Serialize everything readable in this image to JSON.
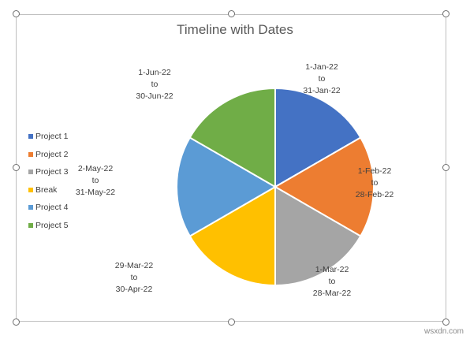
{
  "chart_data": {
    "type": "pie",
    "title": "Timeline with Dates",
    "categories": [
      "Project 1",
      "Project 2",
      "Project 3",
      "Break",
      "Project 4",
      "Project 5"
    ],
    "values": [
      1,
      1,
      1,
      1,
      1,
      1
    ],
    "colors": [
      "#4472C4",
      "#ED7D31",
      "#A5A5A5",
      "#FFC000",
      "#5B9BD5",
      "#70AD47"
    ],
    "data_labels": [
      {
        "start": "1-Jan-22",
        "sep": "to",
        "end": "31-Jan-22"
      },
      {
        "start": "1-Feb-22",
        "sep": "to",
        "end": "28-Feb-22"
      },
      {
        "start": "1-Mar-22",
        "sep": "to",
        "end": "28-Mar-22"
      },
      {
        "start": "29-Mar-22",
        "sep": "to",
        "end": "30-Apr-22"
      },
      {
        "start": "2-May-22",
        "sep": "to",
        "end": "31-May-22"
      },
      {
        "start": "1-Jun-22",
        "sep": "to",
        "end": "30-Jun-22"
      }
    ],
    "legend_position": "left"
  },
  "watermark": "wsxdn.com"
}
